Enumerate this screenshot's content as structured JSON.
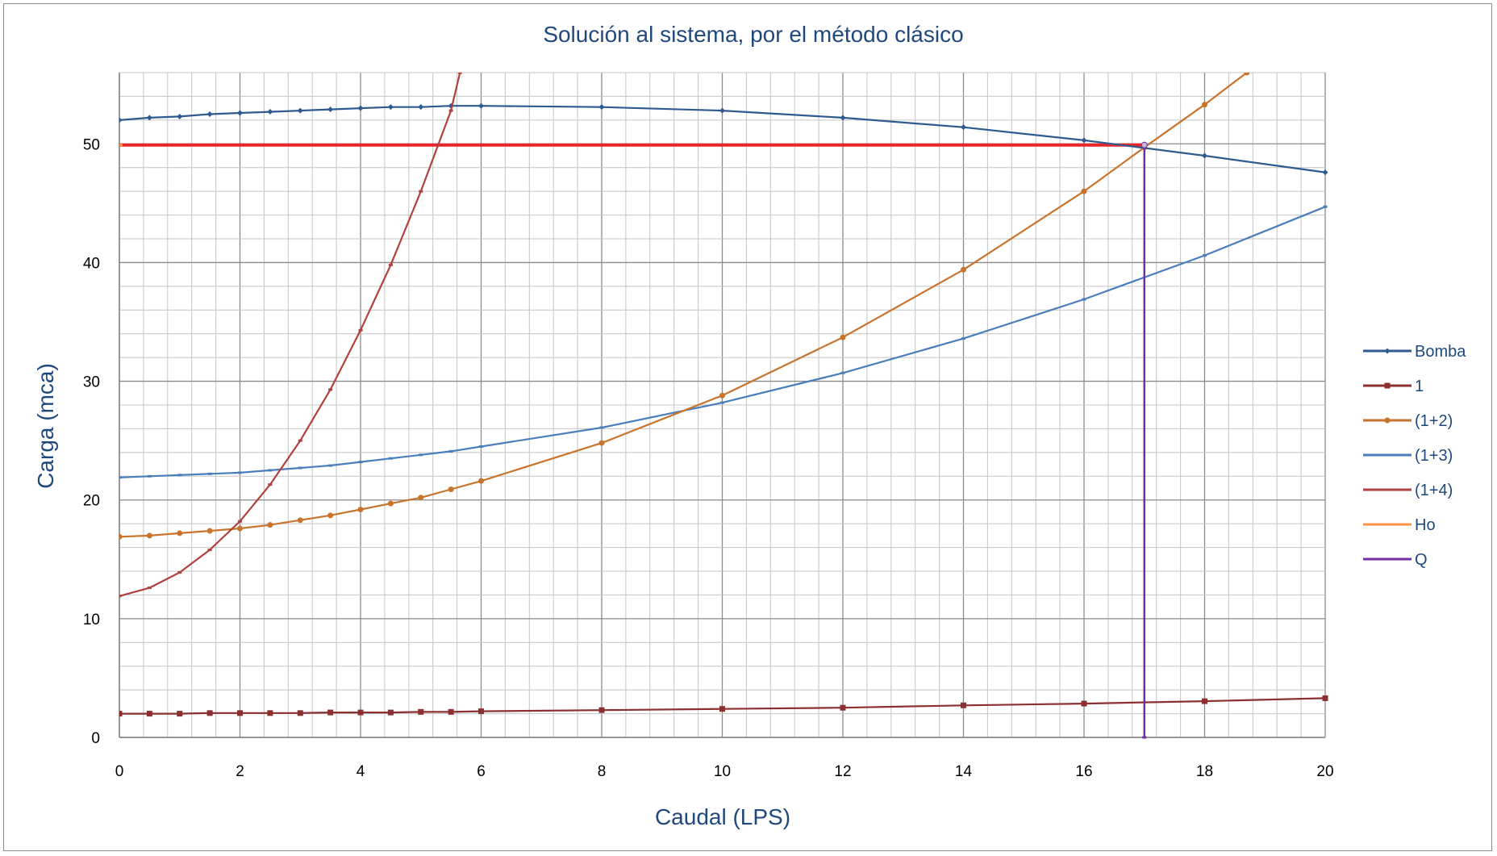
{
  "chart_data": {
    "type": "line",
    "title": "Solución al sistema, por el método clásico",
    "xlabel": "Caudal (LPS)",
    "ylabel": "Carga (mca)",
    "xlim": [
      0,
      20
    ],
    "ylim": [
      0,
      56
    ],
    "x_ticks": [
      "0",
      "2",
      "4",
      "6",
      "8",
      "10",
      "12",
      "14",
      "16",
      "18",
      "20"
    ],
    "y_ticks": [
      "0",
      "10",
      "20",
      "30",
      "40",
      "50"
    ],
    "grid": true,
    "legend_position": "right",
    "series": [
      {
        "name": "Bomba",
        "color": "#2e5a8f",
        "marker": "diamond",
        "x": [
          0,
          0.5,
          1,
          1.5,
          2,
          2.5,
          3,
          3.5,
          4,
          4.5,
          5,
          5.5,
          6,
          8,
          10,
          12,
          14,
          16,
          18,
          20
        ],
        "y": [
          52.0,
          52.2,
          52.3,
          52.5,
          52.6,
          52.7,
          52.8,
          52.9,
          53.0,
          53.1,
          53.1,
          53.2,
          53.2,
          53.1,
          52.8,
          52.2,
          51.4,
          50.3,
          49.0,
          47.6
        ]
      },
      {
        "name": "1",
        "color": "#8b2f2f",
        "marker": "square",
        "x": [
          0,
          0.5,
          1,
          1.5,
          2,
          2.5,
          3,
          3.5,
          4,
          4.5,
          5,
          5.5,
          6,
          8,
          10,
          12,
          14,
          16,
          18,
          20
        ],
        "y": [
          2.0,
          2.0,
          2.0,
          2.05,
          2.05,
          2.05,
          2.05,
          2.1,
          2.1,
          2.1,
          2.15,
          2.15,
          2.2,
          2.3,
          2.4,
          2.5,
          2.7,
          2.85,
          3.05,
          3.3
        ]
      },
      {
        "name": "(1+2)",
        "color": "#c8742c",
        "marker": "circle",
        "x": [
          0,
          0.5,
          1,
          1.5,
          2,
          2.5,
          3,
          3.5,
          4,
          4.5,
          5,
          5.5,
          6,
          8,
          10,
          12,
          14,
          16,
          17,
          18,
          18.7
        ],
        "y": [
          16.9,
          17.0,
          17.2,
          17.4,
          17.6,
          17.9,
          18.3,
          18.7,
          19.2,
          19.7,
          20.2,
          20.9,
          21.6,
          24.8,
          28.8,
          33.7,
          39.4,
          46.0,
          49.7,
          53.3,
          56.0
        ]
      },
      {
        "name": "(1+3)",
        "color": "#4a7ebb",
        "marker": "dash",
        "x": [
          0,
          0.5,
          1,
          1.5,
          2,
          2.5,
          3,
          3.5,
          4,
          4.5,
          5,
          5.5,
          6,
          8,
          10,
          12,
          14,
          16,
          18,
          20
        ],
        "y": [
          21.9,
          22.0,
          22.1,
          22.2,
          22.3,
          22.5,
          22.7,
          22.9,
          23.2,
          23.5,
          23.8,
          24.1,
          24.5,
          26.1,
          28.2,
          30.7,
          33.6,
          36.9,
          40.6,
          44.7
        ]
      },
      {
        "name": "(1+4)",
        "color": "#b0413e",
        "marker": "dash",
        "x": [
          0,
          0.5,
          1,
          1.5,
          2,
          2.5,
          3,
          3.5,
          4,
          4.5,
          5,
          5.5,
          5.65
        ],
        "y": [
          11.9,
          12.6,
          13.9,
          15.8,
          18.2,
          21.3,
          25.0,
          29.3,
          34.3,
          39.8,
          46.0,
          52.8,
          56.0
        ]
      },
      {
        "name": "Ho",
        "color": "#f79646",
        "marker": "none",
        "x": [
          0,
          17
        ],
        "y": [
          49.9,
          49.9
        ]
      },
      {
        "name": "Q",
        "color": "#7030a0",
        "marker": "dash",
        "x": [
          17,
          17
        ],
        "y": [
          49.9,
          0
        ]
      }
    ],
    "annotations": {
      "intersection_line_color": "#e8262a",
      "intersection_y": 49.9,
      "intersection_x": 17
    }
  }
}
